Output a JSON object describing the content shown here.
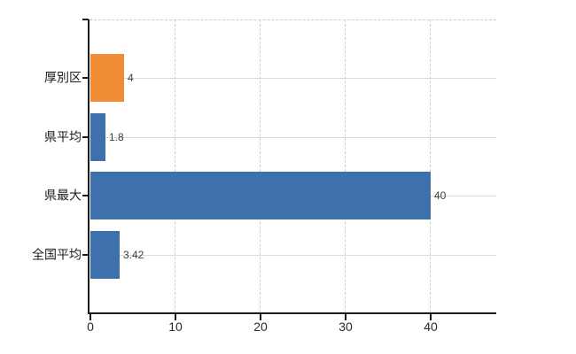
{
  "chart_data": {
    "type": "bar",
    "orientation": "horizontal",
    "title": "",
    "xlabel": "",
    "ylabel": "",
    "categories": [
      "厚別区",
      "県平均",
      "県最大",
      "全国平均"
    ],
    "values": [
      4,
      1.8,
      40,
      3.42
    ],
    "value_labels": [
      "4",
      "1.8",
      "40",
      "3.42"
    ],
    "bar_colors": [
      "#ee8d36",
      "#3e70ac",
      "#3e70ac",
      "#3e70ac"
    ],
    "x_ticks": [
      0,
      10,
      20,
      30,
      40
    ],
    "x_tick_labels": [
      "0",
      "10",
      "20",
      "30",
      "40"
    ],
    "xlim": [
      0,
      47.8
    ],
    "legend": "none",
    "grid": {
      "horizontal_style": "solid",
      "vertical_style": "dashed",
      "top_border_style": "dashed"
    },
    "colors": {
      "bar_blue": "#3e70ac",
      "bar_orange": "#ee8d36",
      "axis": "#1a1a1a",
      "horizontal_grid": "#d6ddd6",
      "vertical_grid": "#cfd1d8",
      "value_text": "#3c3c3c",
      "category_text": "#1c1c1c",
      "tick_text": "#2a2a2a",
      "background": "#ffffff"
    }
  }
}
